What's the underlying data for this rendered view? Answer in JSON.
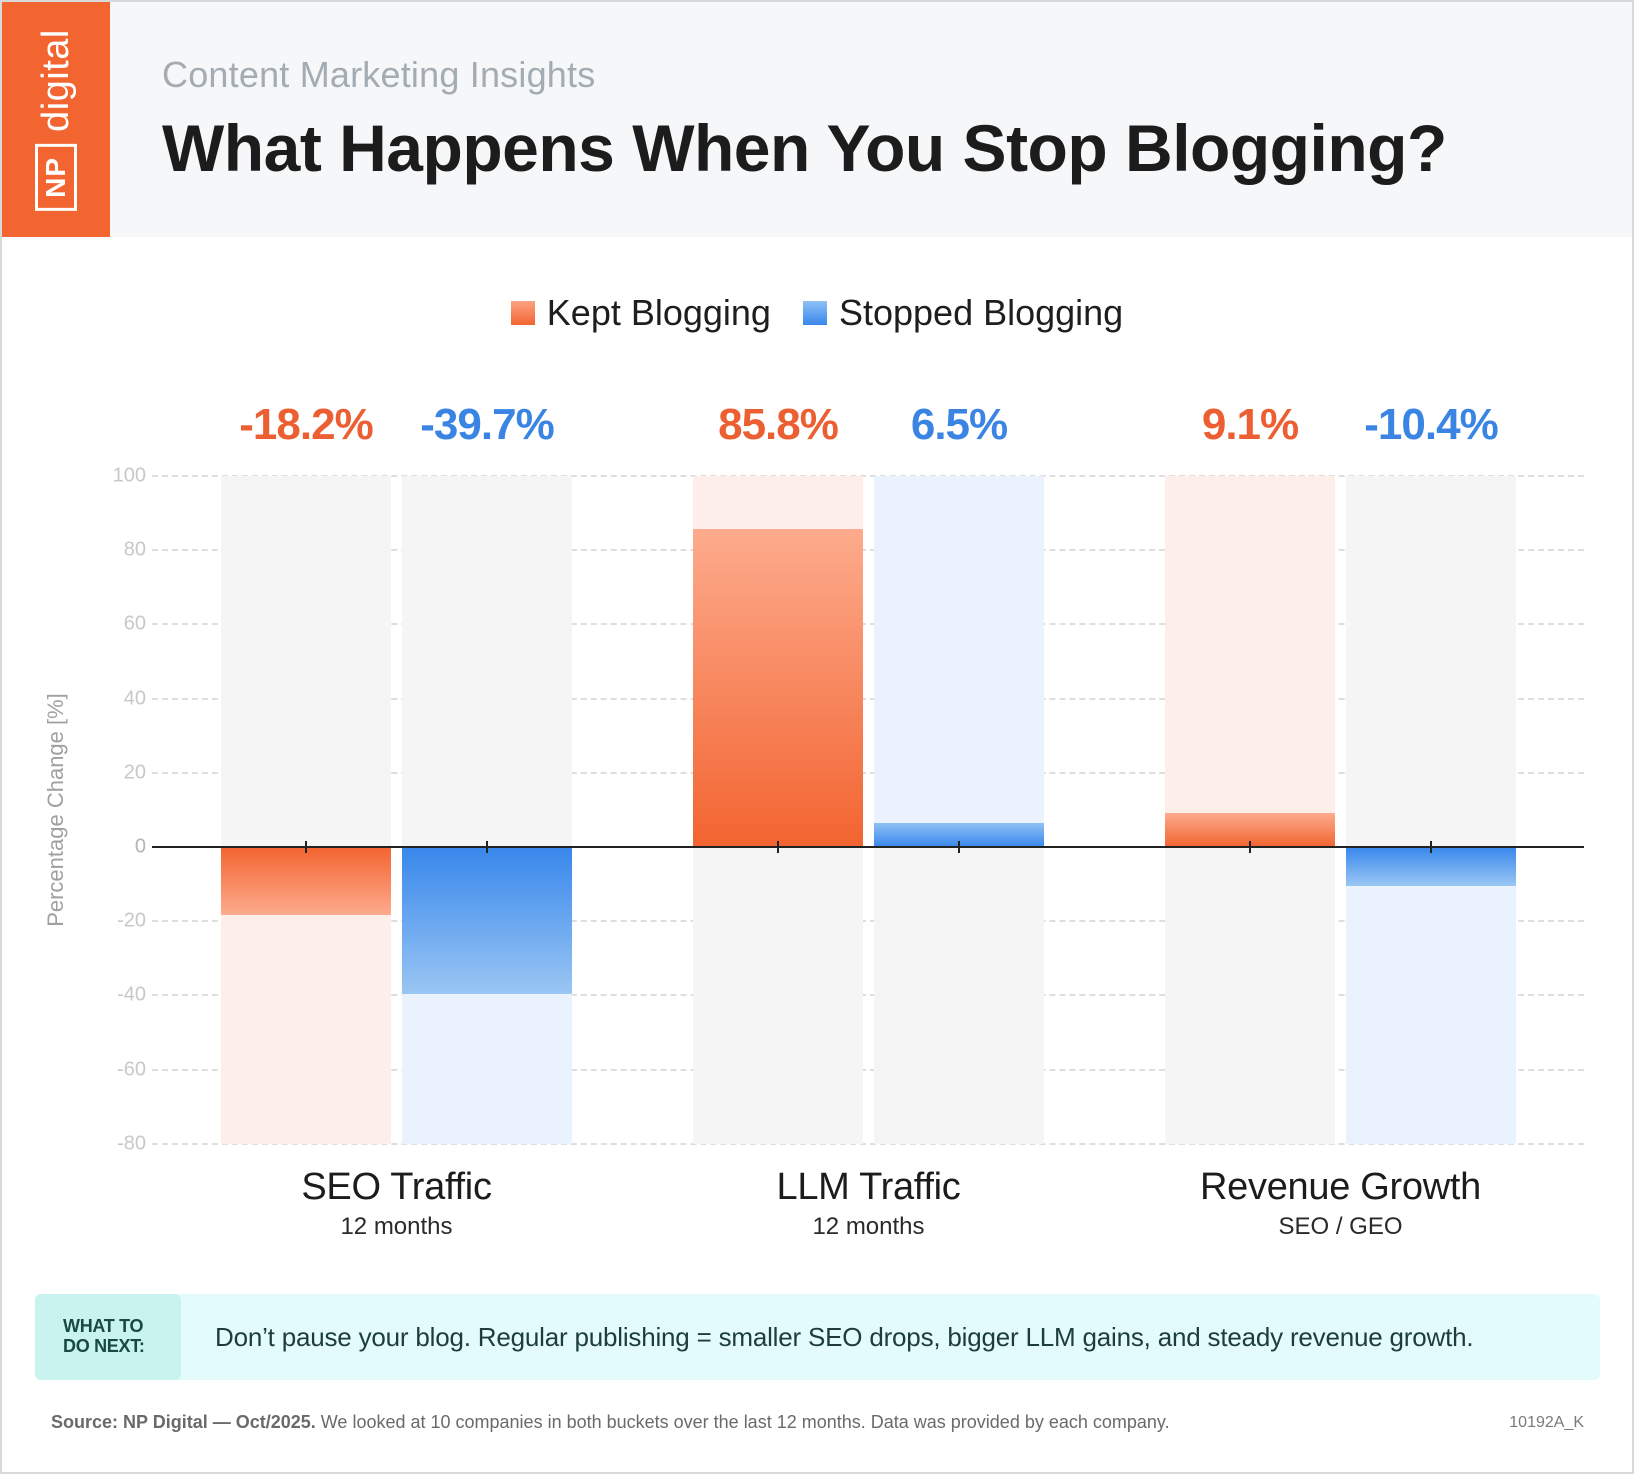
{
  "header": {
    "logo_np": "NP",
    "logo_digital": "digital",
    "subtitle": "Content Marketing Insights",
    "title": "What Happens When You Stop Blogging?"
  },
  "legend": {
    "kept": "Kept Blogging",
    "stopped": "Stopped Blogging"
  },
  "colors": {
    "brand_orange": "#f26430",
    "kept": "#ec5f33",
    "stopped": "#3a85e3",
    "callout_bg": "#e3fbfb",
    "callout_tag_bg": "#c9f3ef"
  },
  "chart_data": {
    "type": "bar",
    "title": "What Happens When You Stop Blogging?",
    "subtitle": "Content Marketing Insights",
    "xlabel": "",
    "ylabel": "Percentage Change [%]",
    "ylim": [
      -80,
      100
    ],
    "yticks": [
      100,
      80,
      60,
      40,
      20,
      0,
      -20,
      -40,
      -60,
      -80
    ],
    "grid": true,
    "legend_position": "top",
    "categories": [
      "SEO Traffic",
      "LLM Traffic",
      "Revenue Growth"
    ],
    "category_subtitles": [
      "12 months",
      "12 months",
      "SEO / GEO"
    ],
    "series": [
      {
        "name": "Kept Blogging",
        "values": [
          -18.2,
          85.8,
          9.1
        ]
      },
      {
        "name": "Stopped Blogging",
        "values": [
          -39.7,
          6.5,
          -10.4
        ]
      }
    ],
    "value_labels": {
      "kept": [
        "-18.2%",
        "85.8%",
        "9.1%"
      ],
      "stopped": [
        "-39.7%",
        "6.5%",
        "-10.4%"
      ]
    }
  },
  "callout": {
    "tag_line1": "WHAT TO",
    "tag_line2": "DO NEXT:",
    "text": "Don’t pause your blog. Regular publishing = smaller SEO drops, bigger LLM gains, and steady revenue growth."
  },
  "footer": {
    "source_bold": "Source: NP Digital — Oct/2025.",
    "source_rest": " We looked at 10 companies in both buckets over the last 12 months. Data was provided by each company.",
    "id": "10192A_K"
  }
}
